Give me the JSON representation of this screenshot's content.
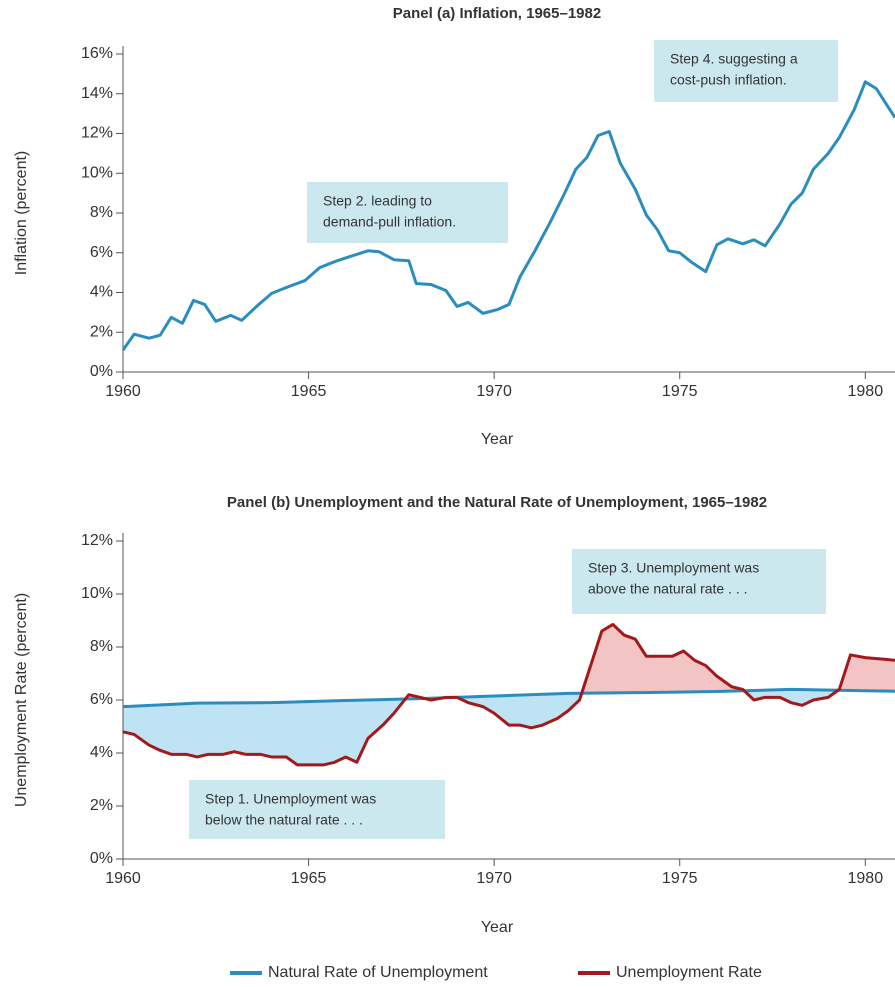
{
  "chart_data": [
    {
      "type": "line",
      "title": "Panel (a) Inflation, 1965–1982",
      "xlabel": "Year",
      "ylabel": "Inflation (percent)",
      "xlim": [
        1960,
        1980.8
      ],
      "ylim": [
        0,
        16
      ],
      "xticks": [
        1960,
        1965,
        1970,
        1975,
        1980
      ],
      "yticks": [
        {
          "value": 0,
          "label": "0%"
        },
        {
          "value": 2,
          "label": "2%"
        },
        {
          "value": 4,
          "label": "4%"
        },
        {
          "value": 6,
          "label": "6%"
        },
        {
          "value": 8,
          "label": "8%"
        },
        {
          "value": 10,
          "label": "10%"
        },
        {
          "value": 12,
          "label": "12%"
        },
        {
          "value": 14,
          "label": "14%"
        },
        {
          "value": 16,
          "label": "16%"
        }
      ],
      "series": [
        {
          "color": "#2b8cc0",
          "x": [
            1960.0,
            1960.3,
            1960.7,
            1961.0,
            1961.3,
            1961.6,
            1961.9,
            1962.2,
            1962.5,
            1962.9,
            1963.2,
            1963.6,
            1964.0,
            1964.4,
            1964.9,
            1965.3,
            1965.7,
            1966.1,
            1966.6,
            1966.9,
            1967.3,
            1967.7,
            1967.9,
            1968.3,
            1968.7,
            1969.0,
            1969.3,
            1969.7,
            1970.1,
            1970.4,
            1970.7,
            1971.1,
            1971.5,
            1971.9,
            1972.2,
            1972.5,
            1972.8,
            1973.1,
            1973.4,
            1973.8,
            1974.1,
            1974.4,
            1974.7,
            1975.0,
            1975.3,
            1975.7,
            1976.0,
            1976.3,
            1976.7,
            1977.0,
            1977.3,
            1977.7,
            1978.0,
            1978.3,
            1978.6,
            1979.0,
            1979.3,
            1979.7,
            1980.0,
            1980.3,
            1980.8
          ],
          "values": [
            1.1,
            1.9,
            1.7,
            1.85,
            2.75,
            2.45,
            3.6,
            3.4,
            2.55,
            2.85,
            2.6,
            3.3,
            3.95,
            4.25,
            4.6,
            5.25,
            5.55,
            5.8,
            6.1,
            6.05,
            5.65,
            5.6,
            4.45,
            4.4,
            4.1,
            3.3,
            3.5,
            2.95,
            3.15,
            3.4,
            4.8,
            6.1,
            7.5,
            9.0,
            10.2,
            10.8,
            11.9,
            12.1,
            10.5,
            9.2,
            7.9,
            7.15,
            6.1,
            6.0,
            5.55,
            5.05,
            6.4,
            6.7,
            6.45,
            6.65,
            6.35,
            7.45,
            8.45,
            9.0,
            10.2,
            11.0,
            11.8,
            13.2,
            14.6,
            14.25,
            12.8
          ]
        }
      ],
      "annotations": [
        [
          "Step 2. leading to",
          "demand-pull inflation."
        ],
        [
          "Step 4. suggesting a",
          "cost-push inflation."
        ]
      ]
    },
    {
      "type": "line",
      "title": "Panel (b) Unemployment and the Natural Rate of Unemployment, 1965–1982",
      "xlabel": "Year",
      "ylabel": "Unemployment Rate (percent)",
      "xlim": [
        1960,
        1980.8
      ],
      "ylim": [
        0,
        12
      ],
      "xticks": [
        1960,
        1965,
        1970,
        1975,
        1980
      ],
      "yticks": [
        {
          "value": 0,
          "label": "0%"
        },
        {
          "value": 2,
          "label": "2%"
        },
        {
          "value": 4,
          "label": "4%"
        },
        {
          "value": 6,
          "label": "6%"
        },
        {
          "value": 8,
          "label": "8%"
        },
        {
          "value": 10,
          "label": "10%"
        },
        {
          "value": 12,
          "label": "12%"
        }
      ],
      "legend": "bottom",
      "fill_below": "#bee3f4",
      "fill_above": "#f2c4c4",
      "series": [
        {
          "name": "Natural Rate of Unemployment",
          "color": "#2b8cc0",
          "x": [
            1960,
            1962,
            1964,
            1966,
            1968,
            1970,
            1972,
            1974,
            1976,
            1978,
            1980,
            1980.8
          ],
          "values": [
            5.75,
            5.88,
            5.9,
            5.98,
            6.05,
            6.15,
            6.25,
            6.28,
            6.32,
            6.4,
            6.35,
            6.33
          ]
        },
        {
          "name": "Unemployment Rate",
          "color": "#a3191b",
          "x": [
            1960.0,
            1960.3,
            1960.7,
            1961.0,
            1961.3,
            1961.7,
            1962.0,
            1962.3,
            1962.7,
            1963.0,
            1963.3,
            1963.7,
            1964.0,
            1964.4,
            1964.7,
            1965.0,
            1965.4,
            1965.7,
            1966.0,
            1966.3,
            1966.6,
            1967.0,
            1967.3,
            1967.7,
            1968.0,
            1968.3,
            1968.7,
            1969.0,
            1969.3,
            1969.7,
            1970.0,
            1970.4,
            1970.7,
            1971.0,
            1971.3,
            1971.7,
            1972.0,
            1972.3,
            1972.6,
            1972.9,
            1973.2,
            1973.5,
            1973.8,
            1974.1,
            1974.5,
            1974.8,
            1975.1,
            1975.4,
            1975.7,
            1976.0,
            1976.4,
            1976.7,
            1977.0,
            1977.3,
            1977.7,
            1978.0,
            1978.3,
            1978.6,
            1979.0,
            1979.3,
            1979.6,
            1980.0,
            1980.8
          ],
          "values": [
            4.8,
            4.7,
            4.3,
            4.1,
            3.95,
            3.95,
            3.85,
            3.95,
            3.95,
            4.05,
            3.95,
            3.95,
            3.85,
            3.85,
            3.55,
            3.55,
            3.55,
            3.65,
            3.85,
            3.65,
            4.55,
            5.05,
            5.5,
            6.2,
            6.1,
            6.0,
            6.1,
            6.1,
            5.9,
            5.75,
            5.5,
            5.05,
            5.05,
            4.95,
            5.05,
            5.3,
            5.6,
            6.0,
            7.3,
            8.6,
            8.85,
            8.45,
            8.3,
            7.65,
            7.65,
            7.65,
            7.85,
            7.5,
            7.3,
            6.9,
            6.5,
            6.4,
            6.0,
            6.1,
            6.1,
            5.9,
            5.8,
            6.0,
            6.1,
            6.4,
            7.7,
            7.6,
            7.5
          ]
        }
      ],
      "annotations": [
        [
          "Step 3. Unemployment was",
          "above the natural rate . . ."
        ],
        [
          "Step 1. Unemployment was",
          "below the natural rate . . ."
        ]
      ]
    }
  ]
}
